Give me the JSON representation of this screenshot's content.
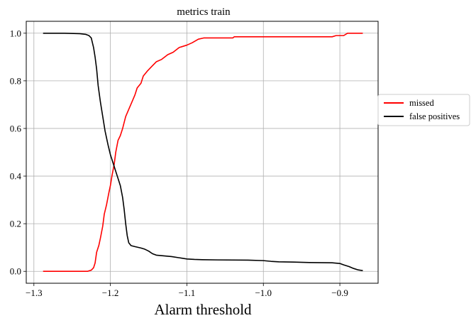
{
  "chart_data": {
    "type": "line",
    "title": "metrics train",
    "xlabel": "Alarm threshold",
    "ylabel": "",
    "xlim": [
      -1.31,
      -0.85
    ],
    "ylim": [
      -0.05,
      1.05
    ],
    "xticks": [
      -1.3,
      -1.2,
      -1.1,
      -1.0,
      -0.9
    ],
    "xtick_labels": [
      "−1.3",
      "−1.2",
      "−1.1",
      "−1.0",
      "−0.9"
    ],
    "yticks": [
      0.0,
      0.2,
      0.4,
      0.6,
      0.8,
      1.0
    ],
    "ytick_labels": [
      "0.0",
      "0.2",
      "0.4",
      "0.6",
      "0.8",
      "1.0"
    ],
    "grid": true,
    "legend_position": "outside right, centered vertically",
    "series": [
      {
        "name": "missed",
        "color": "#ff0000",
        "points": [
          [
            -1.288,
            0.0
          ],
          [
            -1.23,
            0.0
          ],
          [
            -1.225,
            0.005
          ],
          [
            -1.222,
            0.015
          ],
          [
            -1.22,
            0.035
          ],
          [
            -1.218,
            0.08
          ],
          [
            -1.215,
            0.11
          ],
          [
            -1.213,
            0.14
          ],
          [
            -1.21,
            0.19
          ],
          [
            -1.208,
            0.24
          ],
          [
            -1.205,
            0.28
          ],
          [
            -1.202,
            0.33
          ],
          [
            -1.2,
            0.36
          ],
          [
            -1.198,
            0.4
          ],
          [
            -1.195,
            0.45
          ],
          [
            -1.193,
            0.5
          ],
          [
            -1.19,
            0.55
          ],
          [
            -1.187,
            0.57
          ],
          [
            -1.184,
            0.6
          ],
          [
            -1.18,
            0.65
          ],
          [
            -1.176,
            0.68
          ],
          [
            -1.172,
            0.71
          ],
          [
            -1.168,
            0.74
          ],
          [
            -1.165,
            0.77
          ],
          [
            -1.16,
            0.79
          ],
          [
            -1.157,
            0.82
          ],
          [
            -1.152,
            0.84
          ],
          [
            -1.146,
            0.86
          ],
          [
            -1.14,
            0.88
          ],
          [
            -1.133,
            0.89
          ],
          [
            -1.125,
            0.91
          ],
          [
            -1.118,
            0.92
          ],
          [
            -1.11,
            0.94
          ],
          [
            -1.1,
            0.95
          ],
          [
            -1.093,
            0.96
          ],
          [
            -1.085,
            0.975
          ],
          [
            -1.078,
            0.98
          ],
          [
            -1.04,
            0.98
          ],
          [
            -1.038,
            0.985
          ],
          [
            -0.91,
            0.985
          ],
          [
            -0.905,
            0.99
          ],
          [
            -0.895,
            0.99
          ],
          [
            -0.89,
            1.0
          ],
          [
            -0.87,
            1.0
          ]
        ]
      },
      {
        "name": "false positives",
        "color": "#000000",
        "points": [
          [
            -1.288,
            1.0
          ],
          [
            -1.26,
            1.0
          ],
          [
            -1.24,
            0.998
          ],
          [
            -1.232,
            0.995
          ],
          [
            -1.228,
            0.99
          ],
          [
            -1.225,
            0.98
          ],
          [
            -1.222,
            0.94
          ],
          [
            -1.22,
            0.9
          ],
          [
            -1.218,
            0.85
          ],
          [
            -1.216,
            0.78
          ],
          [
            -1.213,
            0.71
          ],
          [
            -1.21,
            0.65
          ],
          [
            -1.207,
            0.59
          ],
          [
            -1.203,
            0.53
          ],
          [
            -1.2,
            0.49
          ],
          [
            -1.196,
            0.45
          ],
          [
            -1.193,
            0.42
          ],
          [
            -1.19,
            0.39
          ],
          [
            -1.187,
            0.36
          ],
          [
            -1.184,
            0.31
          ],
          [
            -1.182,
            0.26
          ],
          [
            -1.18,
            0.2
          ],
          [
            -1.178,
            0.15
          ],
          [
            -1.176,
            0.12
          ],
          [
            -1.173,
            0.108
          ],
          [
            -1.168,
            0.104
          ],
          [
            -1.16,
            0.098
          ],
          [
            -1.155,
            0.093
          ],
          [
            -1.15,
            0.085
          ],
          [
            -1.145,
            0.074
          ],
          [
            -1.14,
            0.068
          ],
          [
            -1.13,
            0.065
          ],
          [
            -1.12,
            0.062
          ],
          [
            -1.11,
            0.057
          ],
          [
            -1.1,
            0.052
          ],
          [
            -1.09,
            0.05
          ],
          [
            -1.08,
            0.049
          ],
          [
            -1.06,
            0.048
          ],
          [
            -1.02,
            0.047
          ],
          [
            -1.0,
            0.045
          ],
          [
            -0.99,
            0.042
          ],
          [
            -0.98,
            0.04
          ],
          [
            -0.96,
            0.039
          ],
          [
            -0.94,
            0.037
          ],
          [
            -0.91,
            0.036
          ],
          [
            -0.9,
            0.033
          ],
          [
            -0.895,
            0.027
          ],
          [
            -0.888,
            0.02
          ],
          [
            -0.882,
            0.012
          ],
          [
            -0.876,
            0.006
          ],
          [
            -0.87,
            0.003
          ]
        ]
      }
    ]
  }
}
